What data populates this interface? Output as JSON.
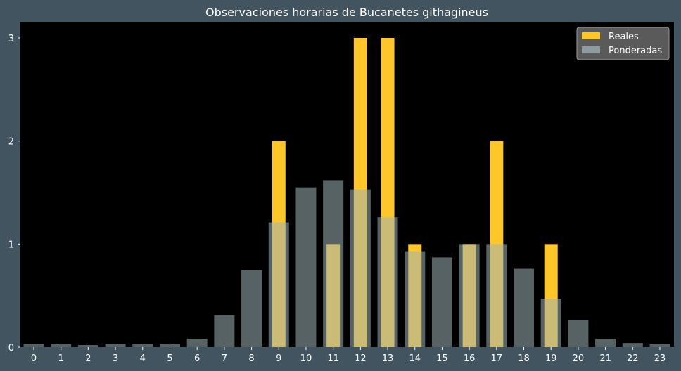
{
  "colors": {
    "background": "#41545f",
    "plot_area": "#000000",
    "reales": "#ffc629",
    "ponderadas": "#9fb3b8",
    "text": "#ffffff"
  },
  "chart_data": {
    "type": "bar",
    "title": "Observaciones horarias de Bucanetes githagineus",
    "xlabel": "",
    "ylabel": "",
    "categories": [
      "0",
      "1",
      "2",
      "3",
      "4",
      "5",
      "6",
      "7",
      "8",
      "9",
      "10",
      "11",
      "12",
      "13",
      "14",
      "15",
      "16",
      "17",
      "18",
      "19",
      "20",
      "21",
      "22",
      "23"
    ],
    "ylim": [
      0,
      3.15
    ],
    "y_ticks": [
      "0",
      "1",
      "2",
      "3"
    ],
    "grid": false,
    "legend_position": "top-right",
    "series": [
      {
        "name": "Reales",
        "color": "#ffc629",
        "values": [
          0,
          0,
          0,
          0,
          0,
          0,
          0,
          0,
          0,
          2,
          0,
          1,
          3,
          3,
          1,
          0,
          1,
          2,
          0,
          1,
          0,
          0,
          0,
          0
        ]
      },
      {
        "name": "Ponderadas",
        "color": "#9fb3b8",
        "opacity": 0.55,
        "values": [
          0.03,
          0.03,
          0.02,
          0.03,
          0.03,
          0.03,
          0.08,
          0.31,
          0.75,
          1.21,
          1.55,
          1.62,
          1.53,
          1.26,
          0.93,
          0.87,
          1.0,
          1.0,
          0.76,
          0.47,
          0.26,
          0.08,
          0.04,
          0.03
        ]
      }
    ]
  }
}
